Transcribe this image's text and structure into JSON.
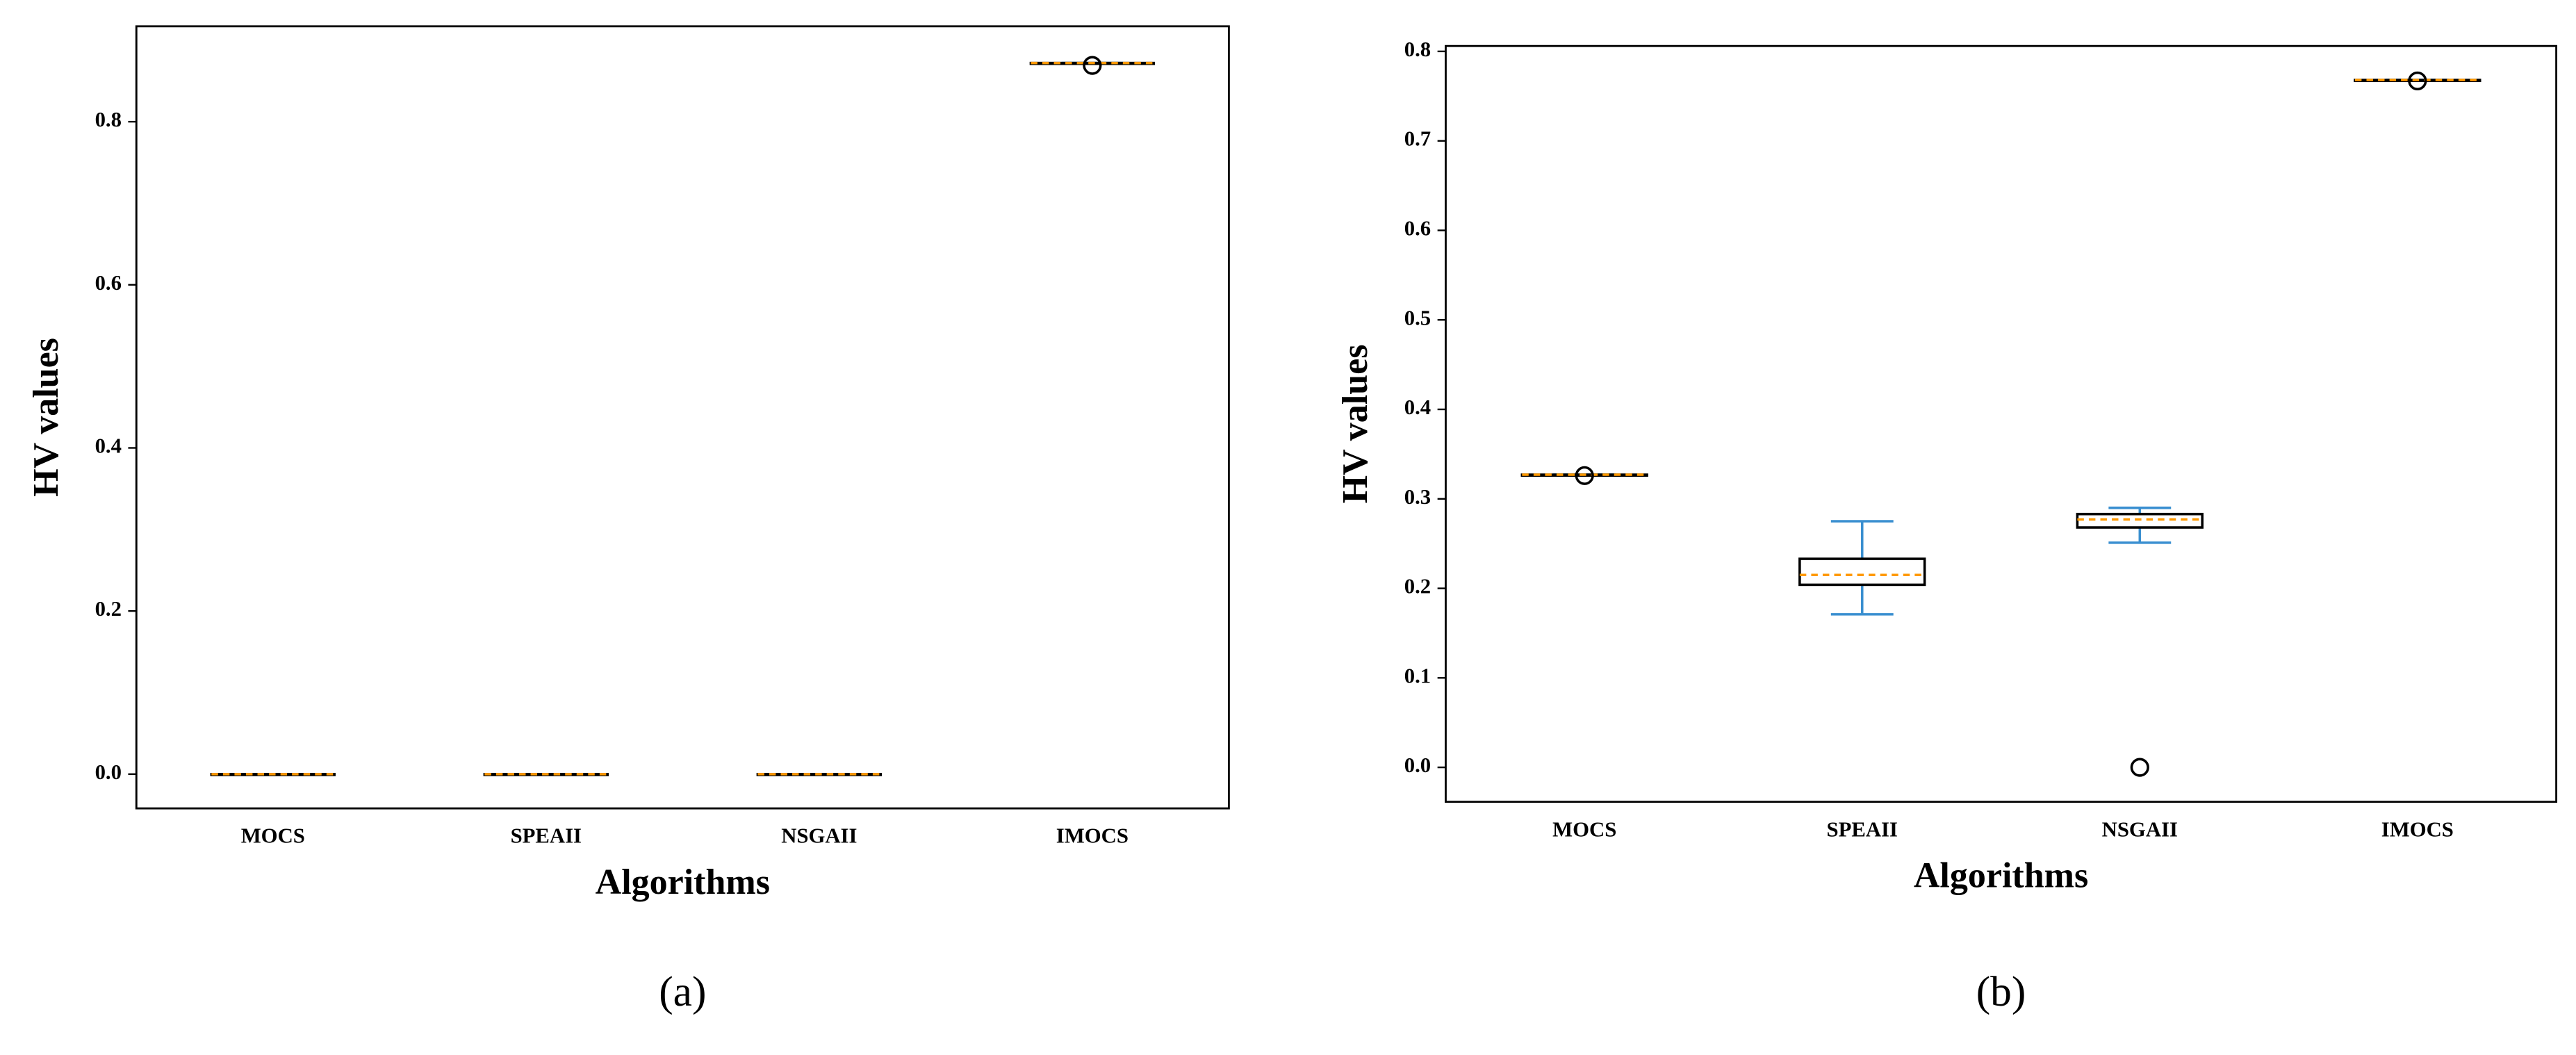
{
  "chart_data": [
    {
      "type": "box",
      "caption": "(a)",
      "x_label": "Algorithms",
      "y_label": "HV values",
      "categories": [
        "MOCS",
        "SPEAII",
        "NSGAII",
        "IMOCS"
      ],
      "boxes": [
        {
          "min": 0,
          "q1": 0,
          "median": 0,
          "q3": 0,
          "max": 0,
          "outliers": []
        },
        {
          "min": 0,
          "q1": 0,
          "median": 0,
          "q3": 0,
          "max": 0,
          "outliers": []
        },
        {
          "min": 0,
          "q1": 0,
          "median": 0,
          "q3": 0,
          "max": 0,
          "outliers": []
        },
        {
          "min": 0.872,
          "q1": 0.872,
          "median": 0.872,
          "q3": 0.872,
          "max": 0.872,
          "outliers": [
            0.869
          ]
        }
      ],
      "ylim": [
        -0.042,
        0.917
      ],
      "yticks": [
        {
          "value": 0,
          "label": "0.0"
        },
        0.2,
        0.4,
        0.6,
        0.8
      ],
      "box_color": "#000000",
      "whisker_color": "#3a8fd0",
      "median_color": "#ff9900"
    },
    {
      "type": "box",
      "caption": "(b)",
      "x_label": "Algorithms",
      "y_label": "HV values",
      "categories": [
        "MOCS",
        "SPEAII",
        "NSGAII",
        "IMOCS"
      ],
      "boxes": [
        {
          "min": 0.327,
          "q1": 0.327,
          "median": 0.327,
          "q3": 0.327,
          "max": 0.327,
          "outliers": [
            0.326
          ]
        },
        {
          "min": 0.171,
          "q1": 0.204,
          "median": 0.215,
          "q3": 0.233,
          "max": 0.275,
          "outliers": []
        },
        {
          "min": 0.251,
          "q1": 0.268,
          "median": 0.277,
          "q3": 0.283,
          "max": 0.29,
          "outliers": [
            0
          ]
        },
        {
          "min": 0.768,
          "q1": 0.768,
          "median": 0.768,
          "q3": 0.768,
          "max": 0.768,
          "outliers": [
            0.767
          ]
        }
      ],
      "ylim": [
        -0.0385,
        0.806
      ],
      "yticks": [
        {
          "value": 0,
          "label": "0.0"
        },
        0.1,
        0.2,
        0.3,
        0.4,
        0.5,
        0.6,
        0.7,
        0.8
      ],
      "box_color": "#000000",
      "whisker_color": "#3a8fd0",
      "median_color": "#ff9900"
    }
  ]
}
